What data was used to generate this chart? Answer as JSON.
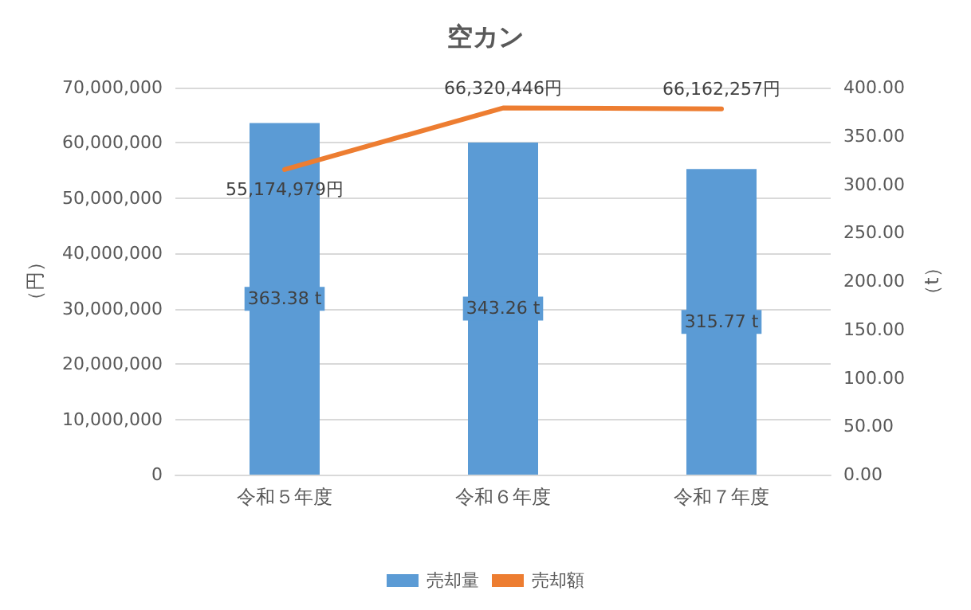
{
  "chart_data": {
    "type": "bar",
    "title": "空カン",
    "categories": [
      "令和５年度",
      "令和６年度",
      "令和７年度"
    ],
    "series": [
      {
        "name": "売却量",
        "axis": "y2",
        "color": "#5b9bd5",
        "values": [
          363.38,
          343.26,
          315.77
        ],
        "value_labels": [
          "363.38 t",
          "343.26 t",
          "315.77 t"
        ]
      },
      {
        "name": "売却額",
        "type": "line",
        "color": "#ed7d31",
        "values": [
          55174979,
          66320446,
          66162257
        ],
        "value_labels": [
          "55,174,979円",
          "66,320,446円",
          "66,162,257円"
        ]
      }
    ],
    "ylabel": "（円）",
    "y2label": "（t）",
    "ylim": [
      0,
      70000000
    ],
    "yticks": [
      {
        "value": 0,
        "label": "0"
      },
      {
        "value": 10000000,
        "label": "10,000,000"
      },
      {
        "value": 20000000,
        "label": "20,000,000"
      },
      {
        "value": 30000000,
        "label": "30,000,000"
      },
      {
        "value": 40000000,
        "label": "40,000,000"
      },
      {
        "value": 50000000,
        "label": "50,000,000"
      },
      {
        "value": 60000000,
        "label": "60,000,000"
      },
      {
        "value": 70000000,
        "label": "70,000,000"
      }
    ],
    "y2lim": [
      0,
      400
    ],
    "y2ticks": [
      {
        "value": 0,
        "label": "0.00"
      },
      {
        "value": 50,
        "label": "50.00"
      },
      {
        "value": 100,
        "label": "100.00"
      },
      {
        "value": 150,
        "label": "150.00"
      },
      {
        "value": 200,
        "label": "200.00"
      },
      {
        "value": 250,
        "label": "250.00"
      },
      {
        "value": 300,
        "label": "300.00"
      },
      {
        "value": 350,
        "label": "350.00"
      },
      {
        "value": 400,
        "label": "400.00"
      }
    ],
    "grid": "y",
    "legend": "bottom",
    "marker": "none",
    "line_style": "solid"
  }
}
